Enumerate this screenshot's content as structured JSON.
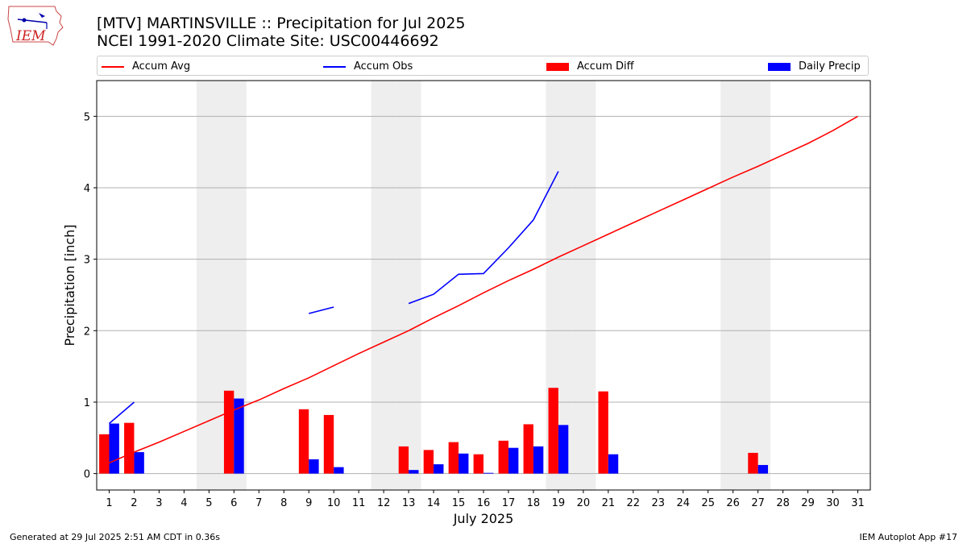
{
  "logo": {
    "text": "IEM"
  },
  "title_line1": "[MTV] MARTINSVILLE :: Precipitation for Jul 2025",
  "title_line2": "NCEI 1991-2020 Climate Site: USC00446692",
  "footer": {
    "left": "Generated at 29 Jul 2025 2:51 AM CDT in 0.36s",
    "right": "IEM Autoplot App #17"
  },
  "colors": {
    "accum_avg": "#ff0000",
    "accum_obs": "#0000ff",
    "accum_diff": "#ff0000",
    "daily_precip": "#0000ff",
    "weekend_shade": "#eeeeee",
    "grid": "#b0b0b0"
  },
  "chart_data": {
    "type": "bar",
    "title": "[MTV] MARTINSVILLE :: Precipitation for Jul 2025",
    "subtitle": "NCEI 1991-2020 Climate Site: USC00446692",
    "xlabel": "July 2025",
    "ylabel": "Precipitation [inch]",
    "xlim": [
      0.5,
      31.5
    ],
    "ylim": [
      -0.23,
      5.5
    ],
    "x_ticks": [
      1,
      2,
      3,
      4,
      5,
      6,
      7,
      8,
      9,
      10,
      11,
      12,
      13,
      14,
      15,
      16,
      17,
      18,
      19,
      20,
      21,
      22,
      23,
      24,
      25,
      26,
      27,
      28,
      29,
      30,
      31
    ],
    "y_ticks": [
      0,
      1,
      2,
      3,
      4,
      5
    ],
    "grid": "y",
    "legend_position": "top",
    "shaded_days": [
      5,
      6,
      12,
      13,
      19,
      20,
      26,
      27
    ],
    "series": [
      {
        "name": "Accum Avg",
        "kind": "line",
        "x": [
          1,
          2,
          3,
          4,
          5,
          6,
          7,
          8,
          9,
          10,
          11,
          12,
          13,
          14,
          15,
          16,
          17,
          18,
          19,
          20,
          21,
          22,
          23,
          24,
          25,
          26,
          27,
          28,
          29,
          30,
          31
        ],
        "values": [
          0.15,
          0.3,
          0.44,
          0.59,
          0.74,
          0.89,
          1.03,
          1.19,
          1.34,
          1.51,
          1.68,
          1.84,
          2.0,
          2.18,
          2.35,
          2.53,
          2.7,
          2.86,
          3.03,
          3.19,
          3.35,
          3.51,
          3.67,
          3.83,
          3.99,
          4.15,
          4.3,
          4.46,
          4.62,
          4.8,
          5.0
        ]
      },
      {
        "name": "Accum Obs",
        "kind": "line",
        "x": [
          1,
          2,
          3,
          4,
          5,
          6,
          7,
          8,
          9,
          10,
          11,
          12,
          13,
          14,
          15,
          16,
          17,
          18,
          19
        ],
        "values": [
          0.7,
          1.0,
          null,
          null,
          null,
          null,
          null,
          null,
          2.24,
          2.33,
          null,
          null,
          2.38,
          2.51,
          2.79,
          2.8,
          3.16,
          3.55,
          4.23
        ]
      },
      {
        "name": "Accum Diff",
        "kind": "bar",
        "x": [
          1,
          2,
          6,
          9,
          10,
          13,
          14,
          15,
          16,
          17,
          18,
          19,
          21,
          27
        ],
        "values": [
          0.55,
          0.71,
          1.16,
          0.9,
          0.82,
          0.38,
          0.33,
          0.44,
          0.27,
          0.46,
          0.69,
          1.2,
          1.15,
          0.29
        ]
      },
      {
        "name": "Daily Precip",
        "kind": "bar",
        "x": [
          1,
          2,
          6,
          9,
          10,
          13,
          14,
          15,
          16,
          17,
          18,
          19,
          21,
          27
        ],
        "values": [
          0.7,
          0.3,
          1.05,
          0.2,
          0.09,
          0.05,
          0.13,
          0.28,
          0.01,
          0.36,
          0.38,
          0.68,
          0.27,
          0.12
        ]
      }
    ]
  }
}
